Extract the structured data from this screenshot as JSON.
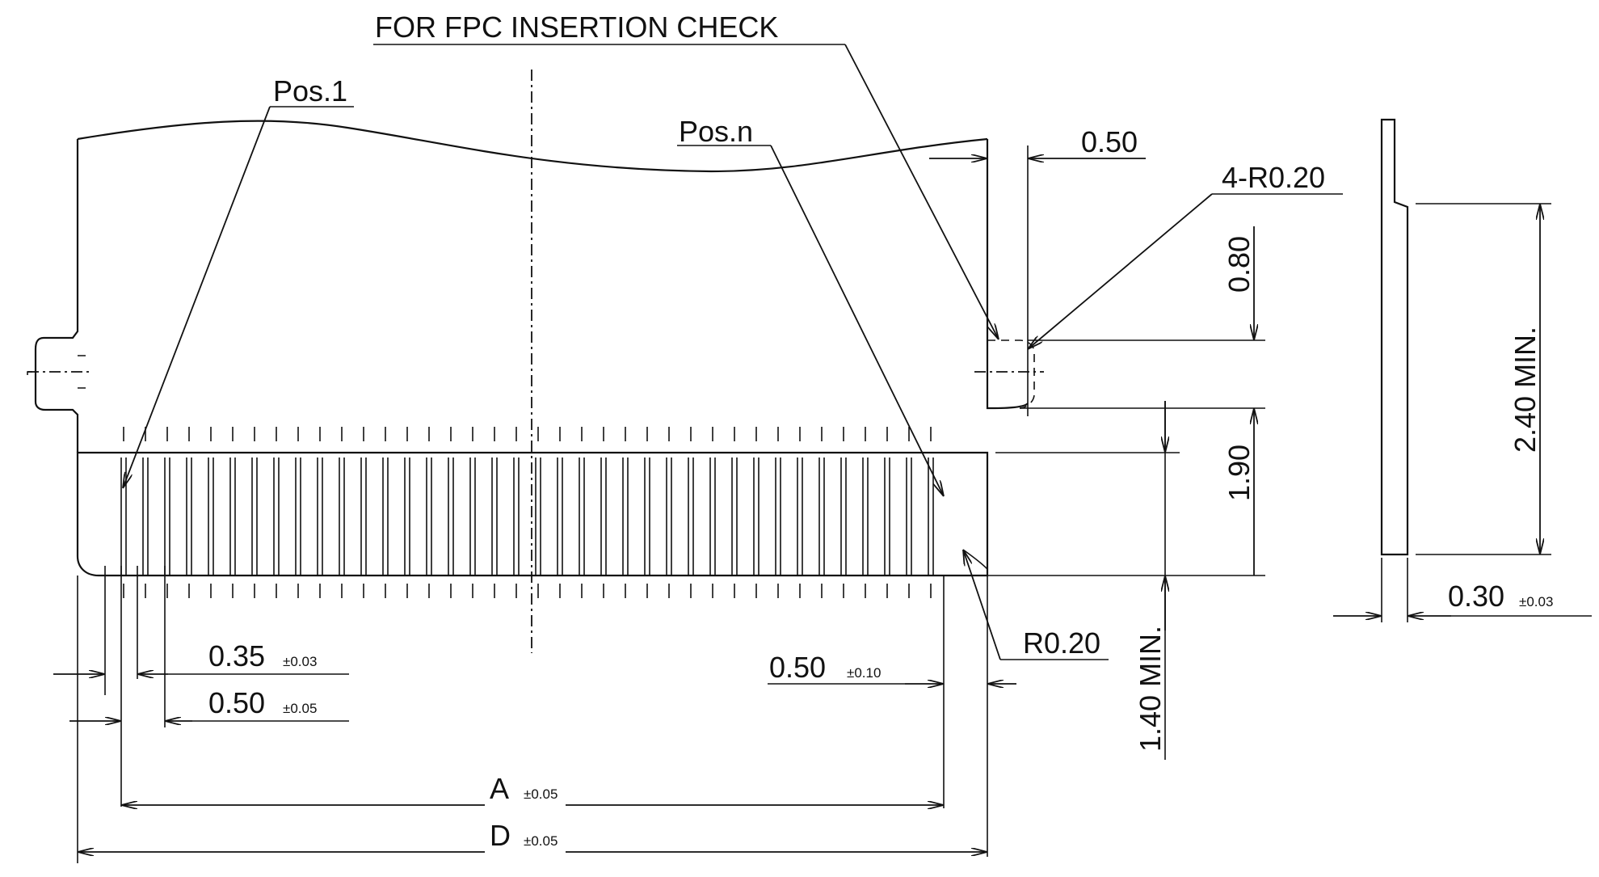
{
  "labels": {
    "title": "FOR FPC INSERTION CHECK",
    "pos_first": "Pos.1",
    "pos_last": "Pos.n",
    "dim_050_top": "0.50",
    "radius_four": "4-R0.20",
    "dim_080": "0.80",
    "dim_190": "1.90",
    "dim_240_min": "2.40 MIN.",
    "dim_140_min": "1.40 MIN.",
    "dim_030": "0.30",
    "tol_030": "±0.03",
    "dim_035": "0.35",
    "tol_035": "±0.03",
    "dim_050_pitch": "0.50",
    "tol_050_pitch": "±0.05",
    "dim_050_right": "0.50",
    "tol_050_right": "±0.10",
    "radius_single": "R0.20",
    "dim_a": "A",
    "tol_a": "±0.05",
    "dim_d": "D",
    "tol_d": "±0.05"
  }
}
